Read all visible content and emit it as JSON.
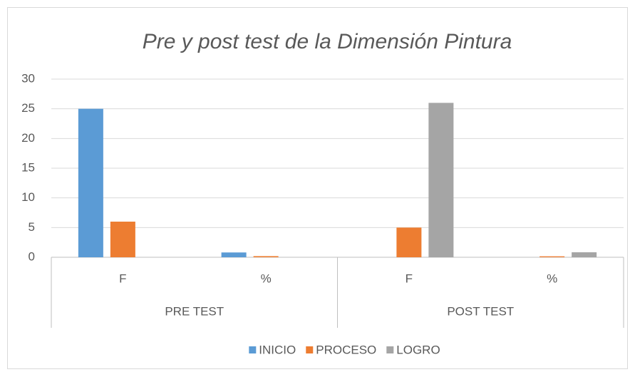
{
  "chart_data": {
    "type": "bar",
    "title": "Pre y post test de la Dimensión Pintura",
    "categories": [
      "F",
      "%",
      "F",
      "%"
    ],
    "groups": [
      "PRE TEST",
      "POST TEST"
    ],
    "series": [
      {
        "name": "INICIO",
        "color": "#5b9bd5",
        "values": [
          25,
          0.81,
          0,
          0
        ]
      },
      {
        "name": "PROCESO",
        "color": "#ed7d31",
        "values": [
          6,
          0.19,
          5,
          0.16
        ]
      },
      {
        "name": "LOGRO",
        "color": "#a5a5a5",
        "values": [
          0,
          0,
          26,
          0.84
        ]
      }
    ],
    "ylim": [
      0,
      30
    ],
    "yticks": [
      0,
      5,
      10,
      15,
      20,
      25,
      30
    ],
    "grid": true,
    "legend": "bottom"
  }
}
